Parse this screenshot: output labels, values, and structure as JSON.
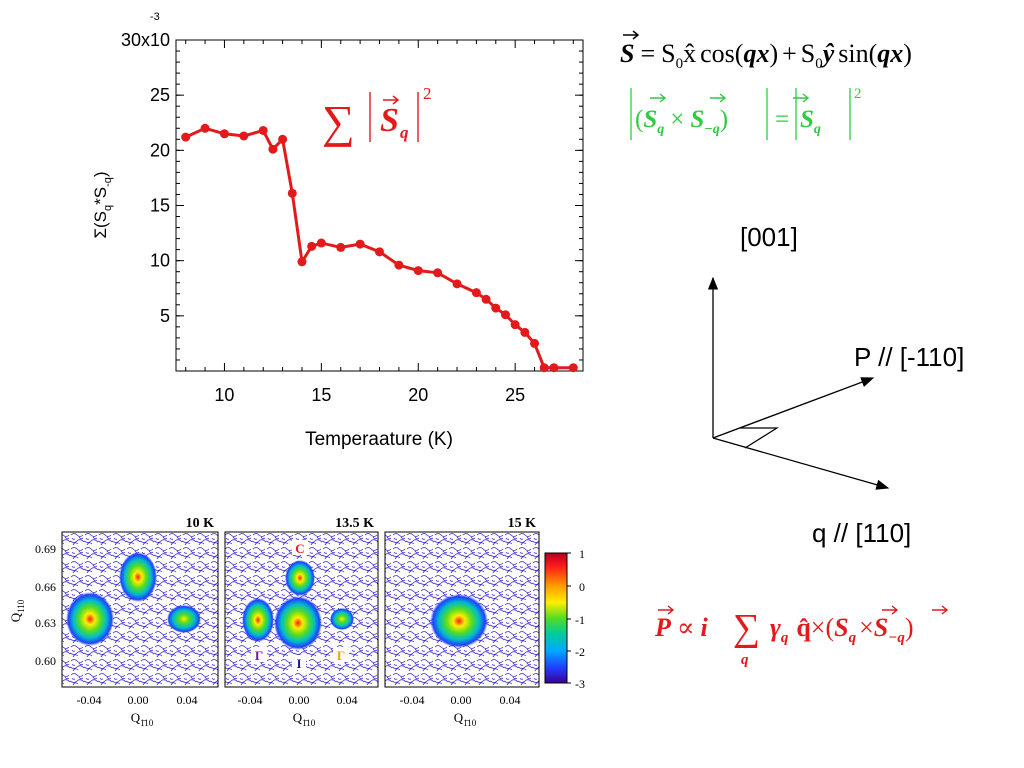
{
  "main_chart": {
    "chart_data": {
      "type": "line",
      "title": "",
      "xlabel": "Temperaature (K)",
      "ylabel": "Σ(S_q*S_-q)",
      "ylabel_parts": {
        "prefix": "Σ(S",
        "sub1": "q",
        "mid": "*S",
        "sub2": "-q",
        "suffix": ")"
      },
      "xlim": [
        7.5,
        28.5
      ],
      "ylim": [
        0,
        0.03
      ],
      "x_ticks": [
        10,
        15,
        20,
        25
      ],
      "y_ticks": [
        0.005,
        0.01,
        0.015,
        0.02,
        0.025,
        0.03
      ],
      "y_tick_labels": [
        "5",
        "10",
        "15",
        "20",
        "25",
        "30x10"
      ],
      "y_exponent": "-3",
      "series": [
        {
          "color": "#e31a1c",
          "x": [
            8,
            9,
            10,
            11,
            12,
            12.5,
            13,
            13.5,
            14,
            14.5,
            15,
            16,
            17,
            18,
            19,
            20,
            21,
            22,
            23,
            23.5,
            24,
            24.5,
            25,
            25.5,
            26,
            26.5,
            27,
            28
          ],
          "y": [
            0.0212,
            0.022,
            0.0215,
            0.0213,
            0.0218,
            0.0201,
            0.021,
            0.0161,
            0.0099,
            0.0113,
            0.0116,
            0.0112,
            0.0115,
            0.0108,
            0.0096,
            0.0091,
            0.0089,
            0.0079,
            0.0071,
            0.0065,
            0.0057,
            0.0051,
            0.0042,
            0.0035,
            0.0025,
            0.0003,
            0.0003,
            0.0003
          ]
        }
      ]
    },
    "annotation": {
      "sum": "∑",
      "S": "S",
      "sub": "q",
      "power": "2",
      "color": "#e31a1c"
    }
  },
  "equations": {
    "eq1": {
      "S": "S",
      "eq": "=",
      "S0": "S",
      "zero": "0",
      "x_hat": "x̂",
      "cos": "cos(",
      "qx": "qx",
      "close": ")",
      "plus": "+",
      "S0b": "S",
      "zerob": "0",
      "y_hat": "ŷ",
      "sin": "sin(",
      "qxb": "qx",
      "closeb": ")"
    },
    "eq2": {
      "lhs": "(",
      "S": "S",
      "q": "q",
      "times": "×",
      "S2": "S",
      "mq": "−q",
      "rp": ")",
      "eq": "=",
      "S3": "S",
      "q3": "q",
      "power": "2",
      "color": "#2ecc40"
    },
    "eq3": {
      "P": "P",
      "prop": "∝",
      "i": "i",
      "sum": "∑",
      "sum_sub": "q",
      "gamma": "γ",
      "gq": "q",
      "qhat": "q̂",
      "times": "×",
      "lp": "(",
      "S": "S",
      "sq": "q",
      "x": "×",
      "S2": "S",
      "smq": "−q",
      "rp": ")",
      "color": "#e31a1c"
    }
  },
  "axes_diagram": {
    "z_label": "[001]",
    "p_label": "P // [-110]",
    "q_label": "q // [110]"
  },
  "maps": {
    "panels": [
      {
        "title": "10 K"
      },
      {
        "title": "13.5 K",
        "labels": {
          "C": "C",
          "I": "I",
          "Gamma_left": "Γ",
          "Gamma_right": "Γ"
        }
      },
      {
        "title": "15 K"
      }
    ],
    "y_axis_label": "Q",
    "y_axis_sub": "110",
    "y_ticks": [
      "0.69",
      "0.66",
      "0.63",
      "0.60"
    ],
    "x_ticks": [
      "-0.04",
      "0.00",
      "0.04"
    ],
    "x_axis_label": "Q",
    "x_axis_sub": "1̄10",
    "colorbar_ticks": [
      "1",
      "0",
      "-1",
      "-2",
      "-3"
    ]
  }
}
